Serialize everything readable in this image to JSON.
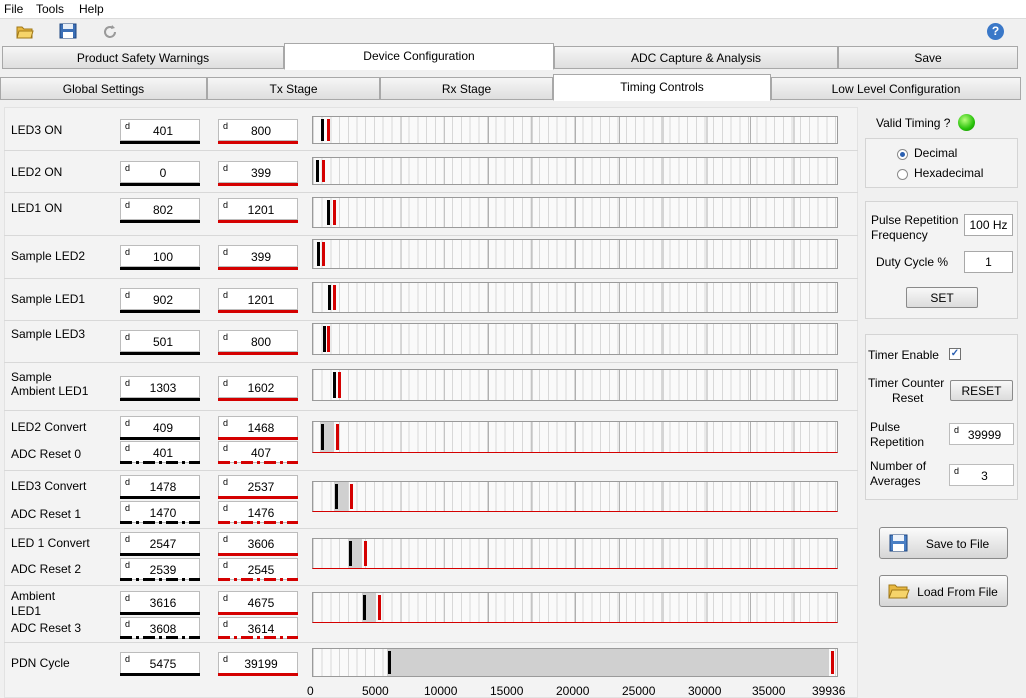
{
  "menu": {
    "file": "File",
    "tools": "Tools",
    "help": "Help"
  },
  "toolbar": {
    "open_icon": "folder-open-icon",
    "save_icon": "floppy-disk-icon",
    "refresh_icon": "refresh-icon",
    "help_icon": "help-icon",
    "help_glyph": "?"
  },
  "tabs_main": [
    "Product Safety Warnings",
    "Device Configuration",
    "ADC Capture & Analysis",
    "Save"
  ],
  "tabs_sub": [
    "Global Settings",
    "Tx Stage",
    "Rx Stage",
    "Timing Controls",
    "Low Level Configuration"
  ],
  "active_main_tab": "Device Configuration",
  "active_sub_tab": "Timing Controls",
  "prefix": "d",
  "rows": [
    {
      "label": "LED3 ON",
      "start": "401",
      "end": "800"
    },
    {
      "label": "LED2 ON",
      "start": "0",
      "end": "399"
    },
    {
      "label": "LED1 ON",
      "start": "802",
      "end": "1201"
    },
    {
      "label": "Sample LED2",
      "start": "100",
      "end": "399"
    },
    {
      "label": "Sample LED1",
      "start": "902",
      "end": "1201"
    },
    {
      "label": "Sample LED3",
      "start": "501",
      "end": "800"
    },
    {
      "label_line1": "Sample",
      "label_line2": "Ambient LED1",
      "start": "1303",
      "end": "1602"
    },
    {
      "label": "LED2 Convert",
      "start": "409",
      "end": "1468",
      "sub_label": "ADC Reset 0",
      "sub_start": "401",
      "sub_end": "407"
    },
    {
      "label": "LED3 Convert",
      "start": "1478",
      "end": "2537",
      "sub_label": "ADC Reset 1",
      "sub_start": "1470",
      "sub_end": "1476"
    },
    {
      "label": "LED 1 Convert",
      "start": "2547",
      "end": "3606",
      "sub_label": "ADC Reset 2",
      "sub_start": "2539",
      "sub_end": "2545"
    },
    {
      "label_line1": "Ambient",
      "label_line2": "LED1",
      "start": "3616",
      "end": "4675",
      "sub_label": "ADC Reset 3",
      "sub_start": "3608",
      "sub_end": "3614"
    },
    {
      "label": "PDN Cycle",
      "start": "5475",
      "end": "39199"
    }
  ],
  "axis": {
    "ticks": [
      "0",
      "5000",
      "10000",
      "15000",
      "20000",
      "25000",
      "30000",
      "35000",
      "39936"
    ],
    "max": 39936
  },
  "right": {
    "valid_timing_label": "Valid Timing ?",
    "valid_timing_color": "#27c20a",
    "decimal_label": "Decimal",
    "hex_label": "Hexadecimal",
    "number_format": "Decimal",
    "prf_label_line1": "Pulse Repetition",
    "prf_label_line2": "Frequency",
    "prf_value": "100 Hz",
    "duty_label": "Duty Cycle %",
    "duty_value": "1",
    "set_label": "SET",
    "timer_enable_label": "Timer Enable",
    "timer_enable_checked": true,
    "timer_enable_mark": "✓",
    "timer_counter_line1": "Timer Counter",
    "timer_counter_line2": "Reset",
    "reset_label": "RESET",
    "pulse_rep_line1": "Pulse",
    "pulse_rep_line2": "Repetition",
    "pulse_rep_value": "39999",
    "num_avg_line1": "Number of",
    "num_avg_line2": "Averages",
    "num_avg_value": "3",
    "save_file_label": "Save to File",
    "load_file_label": "Load From File"
  },
  "colors": {
    "start_marker": "#000000",
    "end_marker": "#d40000",
    "valid_led": "#27c20a",
    "accent": "#2a5fb0"
  }
}
